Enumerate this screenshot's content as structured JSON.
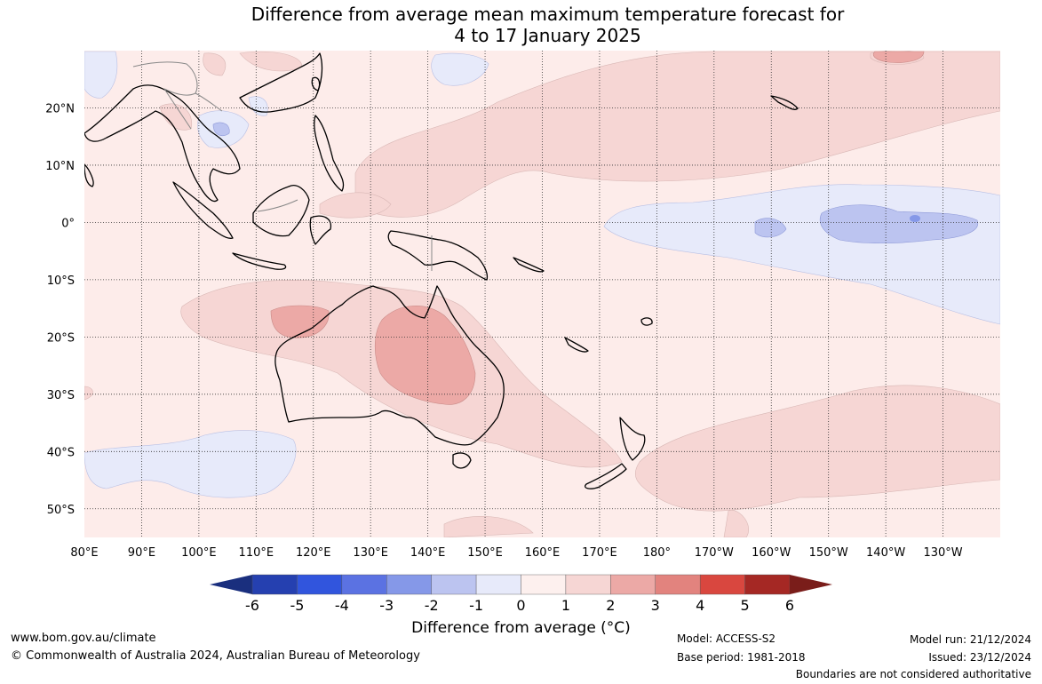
{
  "title": {
    "line1": "Difference from average mean maximum temperature forecast for",
    "line2": "4 to 17 January 2025"
  },
  "map": {
    "lon_range": [
      80,
      240
    ],
    "lat_range": [
      -55,
      30
    ],
    "lon_ticks": [
      {
        "lon": 80,
        "label": "80°E"
      },
      {
        "lon": 90,
        "label": "90°E"
      },
      {
        "lon": 100,
        "label": "100°E"
      },
      {
        "lon": 110,
        "label": "110°E"
      },
      {
        "lon": 120,
        "label": "120°E"
      },
      {
        "lon": 130,
        "label": "130°E"
      },
      {
        "lon": 140,
        "label": "140°E"
      },
      {
        "lon": 150,
        "label": "150°E"
      },
      {
        "lon": 160,
        "label": "160°E"
      },
      {
        "lon": 170,
        "label": "170°E"
      },
      {
        "lon": 180,
        "label": "180°"
      },
      {
        "lon": 190,
        "label": "170°W"
      },
      {
        "lon": 200,
        "label": "160°W"
      },
      {
        "lon": 210,
        "label": "150°W"
      },
      {
        "lon": 220,
        "label": "140°W"
      },
      {
        "lon": 230,
        "label": "130°W"
      }
    ],
    "lat_ticks": [
      {
        "lat": 20,
        "label": "20°N"
      },
      {
        "lat": 10,
        "label": "10°N"
      },
      {
        "lat": 0,
        "label": "0°"
      },
      {
        "lat": -10,
        "label": "10°S"
      },
      {
        "lat": -20,
        "label": "20°S"
      },
      {
        "lat": -30,
        "label": "30°S"
      },
      {
        "lat": -40,
        "label": "40°S"
      },
      {
        "lat": -50,
        "label": "50°S"
      }
    ],
    "grid": true
  },
  "colorbar": {
    "ticks": [
      "-6",
      "-5",
      "-4",
      "-3",
      "-2",
      "-1",
      "0",
      "1",
      "2",
      "3",
      "4",
      "5",
      "6"
    ],
    "colors": [
      "#2540b0",
      "#3155dd",
      "#5b72e2",
      "#8598e8",
      "#bcc4f0",
      "#e7eafa",
      "#fdf0ee",
      "#f6d6d4",
      "#eca9a6",
      "#e2837e",
      "#d9473f",
      "#a52824"
    ],
    "under_color": "#1a2f7e",
    "over_color": "#7a1d1a",
    "label": "Difference from average (°C)"
  },
  "footer": {
    "url": "www.bom.gov.au/climate",
    "copyright": "© Commonwealth of Australia 2024, Australian Bureau of Meteorology",
    "model": "Model: ACCESS-S2",
    "base_period": "Base period: 1981-2018",
    "model_run": "Model run: 21/12/2024",
    "issued": "Issued: 23/12/2024",
    "disclaimer": "Boundaries are not considered authoritative"
  }
}
